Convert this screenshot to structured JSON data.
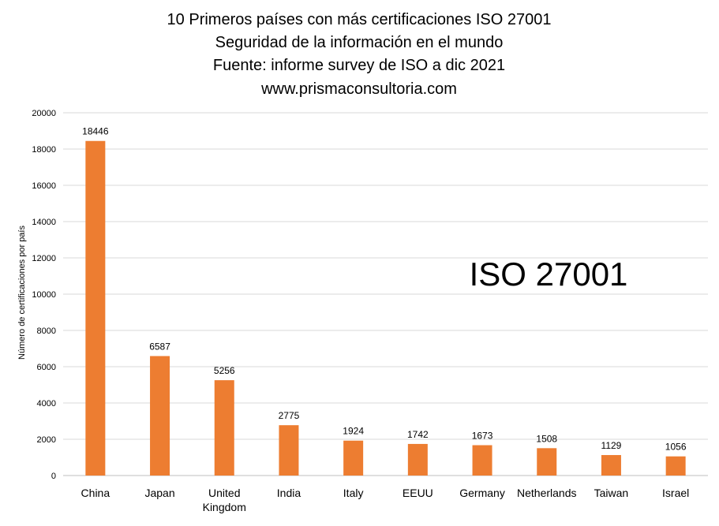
{
  "chart_data": {
    "type": "bar",
    "title_lines": [
      "10 Primeros países con más certificaciones ISO 27001",
      "Seguridad de la información en el mundo",
      "Fuente: informe survey de ISO  a dic 2021",
      "www.prismaconsultoria.com"
    ],
    "ylabel": "Número de certificaciones por país",
    "annotation": "ISO 27001",
    "categories": [
      [
        "China"
      ],
      [
        "Japan"
      ],
      [
        "United",
        "Kingdom"
      ],
      [
        "India"
      ],
      [
        "Italy"
      ],
      [
        "EEUU"
      ],
      [
        "Germany"
      ],
      [
        "Netherlands"
      ],
      [
        "Taiwan"
      ],
      [
        "Israel"
      ]
    ],
    "values": [
      18446,
      6587,
      5256,
      2775,
      1924,
      1742,
      1673,
      1508,
      1129,
      1056
    ],
    "ylim": [
      0,
      20000
    ],
    "yticks": [
      0,
      2000,
      4000,
      6000,
      8000,
      10000,
      12000,
      14000,
      16000,
      18000,
      20000
    ],
    "grid": true,
    "legend": "none",
    "colors": {
      "bar": "#ED7D31",
      "grid": "#D9D9D9",
      "text": "#000000"
    }
  }
}
